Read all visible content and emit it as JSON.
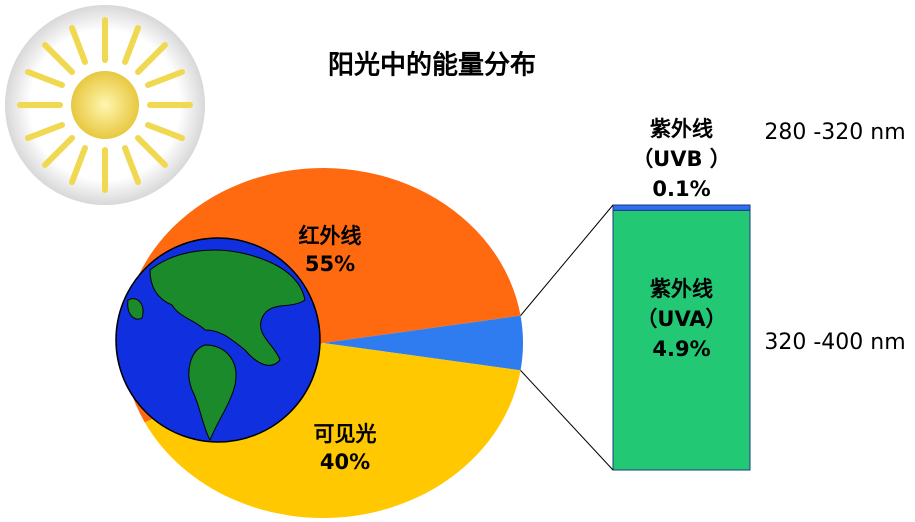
{
  "chart_data": {
    "type": "pie",
    "title": "阳光中的能量分布",
    "categories": [
      "红外线",
      null,
      "可见光"
    ],
    "values": [
      55,
      5,
      40
    ],
    "value_labels": [
      "55%",
      null,
      "40%"
    ],
    "colors": [
      "#ff6a10",
      "#2f7cf0",
      "#ffc800"
    ],
    "breakdown": {
      "type": "bar",
      "categories": [
        "紫外线",
        "紫外线"
      ],
      "codes": [
        "（UVB ）",
        "（UVA）"
      ],
      "values": [
        0.1,
        4.9
      ],
      "value_labels": [
        "0.1%",
        "4.9%"
      ],
      "ranges": [
        "280 -320 nm",
        "320 -400 nm"
      ],
      "colors": [
        "#2f6ff0",
        "#22c874"
      ]
    }
  }
}
